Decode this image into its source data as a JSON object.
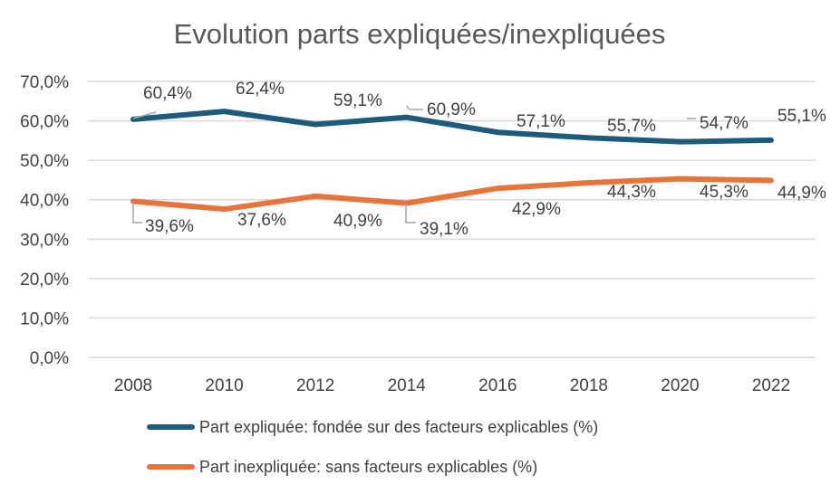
{
  "chart_data": {
    "type": "line",
    "title": "Evolution parts expliquées/inexpliquées",
    "categories": [
      "2008",
      "2010",
      "2012",
      "2014",
      "2016",
      "2018",
      "2020",
      "2022"
    ],
    "ylim": [
      0,
      70
    ],
    "yticks": [
      "0,0%",
      "10,0%",
      "20,0%",
      "30,0%",
      "40,0%",
      "50,0%",
      "60,0%",
      "70,0%"
    ],
    "grid": true,
    "legend_position": "bottom",
    "series": [
      {
        "name": "Part expliquée: fondée sur des facteurs explicables (%)",
        "color": "#1d5a7c",
        "values": [
          60.4,
          62.4,
          59.1,
          60.9,
          57.1,
          55.7,
          54.7,
          55.1
        ],
        "labels": [
          "60,4%",
          "62,4%",
          "59,1%",
          "60,9%",
          "57,1%",
          "55,7%",
          "54,7%",
          "55,1%"
        ]
      },
      {
        "name": "Part inexpliquée: sans facteurs explicables (%)",
        "color": "#e8743b",
        "values": [
          39.6,
          37.6,
          40.9,
          39.1,
          42.9,
          44.3,
          45.3,
          44.9
        ],
        "labels": [
          "39,6%",
          "37,6%",
          "40,9%",
          "39,1%",
          "42,9%",
          "44,3%",
          "45,3%",
          "44,9%"
        ]
      }
    ]
  }
}
